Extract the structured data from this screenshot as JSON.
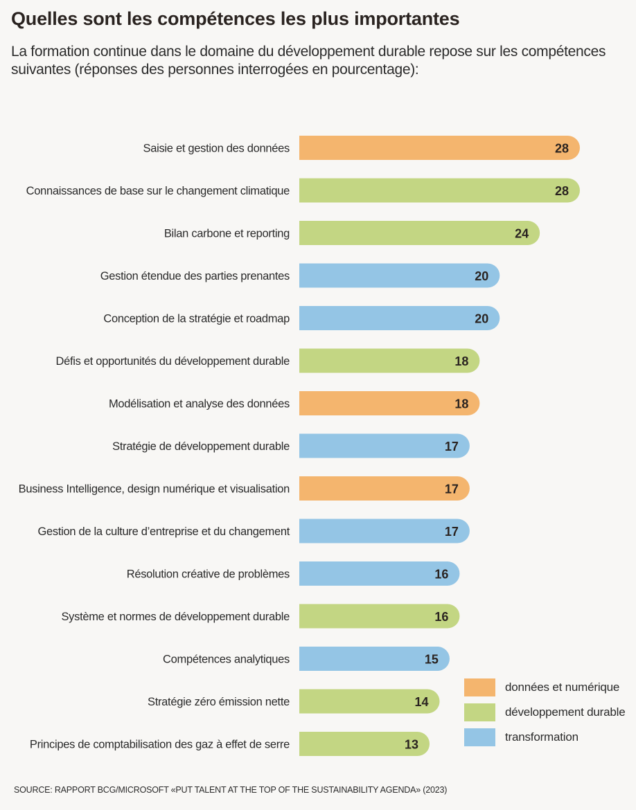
{
  "title": "Quelles sont les compétences les plus importantes",
  "subtitle": "La formation continue dans le domaine du développement durable repose sur les compétences suivantes (réponses des personnes interrogées en pourcentage):",
  "source": "SOURCE: RAPPORT BCG/MICROSOFT «PUT TALENT AT THE TOP OF THE SUSTAINABILITY AGENDA» (2023)",
  "colors": {
    "donnees": "#f4b56e",
    "durable": "#c3d683",
    "transformation": "#94c5e5"
  },
  "legend": [
    {
      "key": "donnees",
      "label": "données et numérique"
    },
    {
      "key": "durable",
      "label": "développement durable"
    },
    {
      "key": "transformation",
      "label": "transformation"
    }
  ],
  "chart_data": {
    "type": "bar",
    "orientation": "horizontal",
    "title": "Quelles sont les compétences les plus importantes",
    "xlabel": "",
    "ylabel": "",
    "unit": "%",
    "xlim": [
      0,
      28
    ],
    "categories": [
      "Saisie et gestion des données",
      "Connaissances de base sur le changement climatique",
      "Bilan carbone et reporting",
      "Gestion étendue des parties prenantes",
      "Conception de la stratégie et roadmap",
      "Défis et opportunités du développement durable",
      "Modélisation et analyse des données",
      "Stratégie de développement durable",
      "Business Intelligence, design numérique et visualisation",
      "Gestion de la culture d’entreprise et du changement",
      "Résolution créative de problèmes",
      "Système et normes de développement durable",
      "Compétences analytiques",
      "Stratégie zéro émission nette",
      "Principes de comptabilisation des gaz à effet de serre"
    ],
    "values": [
      28,
      28,
      24,
      20,
      20,
      18,
      18,
      17,
      17,
      17,
      16,
      16,
      15,
      14,
      13
    ],
    "groups": [
      "donnees",
      "durable",
      "durable",
      "transformation",
      "transformation",
      "durable",
      "donnees",
      "transformation",
      "donnees",
      "transformation",
      "transformation",
      "durable",
      "transformation",
      "durable",
      "durable"
    ],
    "legend_position": "bottom-right"
  }
}
